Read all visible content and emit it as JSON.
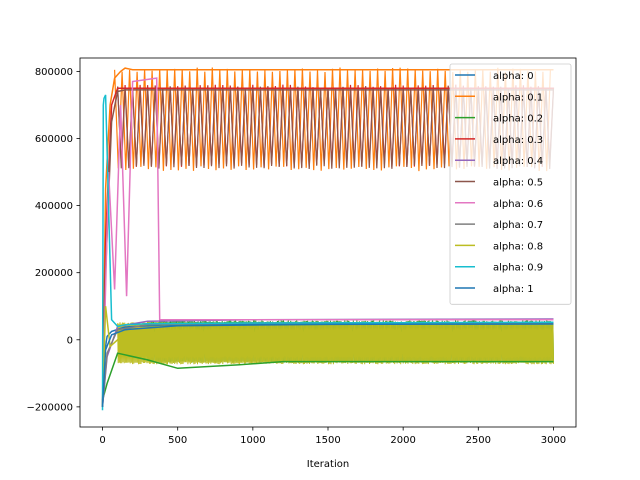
{
  "chart_data": {
    "type": "line",
    "title": "",
    "xlabel": "Iteration",
    "ylabel": "",
    "xlim": [
      -150,
      3150
    ],
    "ylim": [
      -260000,
      840000
    ],
    "x_ticks": [
      0,
      500,
      1000,
      1500,
      2000,
      2500,
      3000
    ],
    "x_tick_labels": [
      "0",
      "500",
      "1000",
      "1500",
      "2000",
      "2500",
      "3000"
    ],
    "y_ticks": [
      -200000,
      0,
      200000,
      400000,
      600000,
      800000
    ],
    "y_tick_labels": [
      "−200000",
      "0",
      "200000",
      "400000",
      "600000",
      "800000"
    ],
    "grid": false,
    "legend_position": "top-right",
    "series": [
      {
        "name": "alpha: 0",
        "color": "#1f77b4",
        "x": [
          0,
          10,
          30,
          60,
          150,
          400,
          1000,
          2000,
          3000
        ],
        "values": [
          -200000,
          -50000,
          10000,
          25000,
          38000,
          44000,
          47000,
          48000,
          48000
        ]
      },
      {
        "name": "alpha: 0.1",
        "color": "#ff7f0e",
        "x": [
          0,
          20,
          50,
          80,
          120,
          150,
          200,
          3000
        ],
        "values": [
          -200000,
          450000,
          700000,
          780000,
          800000,
          810000,
          805000,
          805000
        ],
        "band": [
          510000,
          805000
        ]
      },
      {
        "name": "alpha: 0.2",
        "color": "#2ca02c",
        "x": [
          0,
          30,
          100,
          300,
          500,
          900,
          1200,
          3000
        ],
        "values": [
          -180000,
          -130000,
          -40000,
          -60000,
          -85000,
          -75000,
          -65000,
          -65000
        ],
        "band": [
          -65000,
          55000
        ]
      },
      {
        "name": "alpha: 0.3",
        "color": "#d62728",
        "x": [
          0,
          20,
          60,
          100,
          150,
          3000
        ],
        "values": [
          -200000,
          300000,
          700000,
          750000,
          750000,
          750000
        ],
        "band": [
          520000,
          755000
        ]
      },
      {
        "name": "alpha: 0.4",
        "color": "#9467bd",
        "x": [
          0,
          30,
          100,
          300,
          1000,
          3000
        ],
        "values": [
          -200000,
          -50000,
          40000,
          55000,
          60000,
          62000
        ]
      },
      {
        "name": "alpha: 0.5",
        "color": "#8c564b",
        "x": [
          0,
          20,
          60,
          100,
          150,
          3000
        ],
        "values": [
          -200000,
          200000,
          650000,
          740000,
          745000,
          745000
        ],
        "band": [
          515000,
          750000
        ]
      },
      {
        "name": "alpha: 0.6",
        "color": "#e377c2",
        "x": [
          0,
          40,
          80,
          120,
          160,
          200,
          360,
          380,
          3000
        ],
        "values": [
          -200000,
          500000,
          150000,
          700000,
          130000,
          770000,
          780000,
          60000,
          60000
        ]
      },
      {
        "name": "alpha: 0.7",
        "color": "#7f7f7f",
        "x": [
          0,
          30,
          100,
          300,
          1000,
          3000
        ],
        "values": [
          -200000,
          -40000,
          30000,
          45000,
          50000,
          50000
        ]
      },
      {
        "name": "alpha: 0.8",
        "color": "#bcbd22",
        "x": [
          0,
          20,
          50,
          100,
          200,
          3000
        ],
        "values": [
          -200000,
          100000,
          -20000,
          0,
          0,
          0
        ],
        "band": [
          -70000,
          50000
        ]
      },
      {
        "name": "alpha: 0.9",
        "color": "#17becf",
        "x": [
          0,
          5,
          10,
          20,
          60,
          100,
          150,
          300,
          1000,
          3000
        ],
        "values": [
          -210000,
          700000,
          720000,
          730000,
          60000,
          40000,
          45000,
          48000,
          50000,
          52000
        ]
      },
      {
        "name": "alpha: 1",
        "color": "#1f77b4",
        "x": [
          0,
          20,
          60,
          150,
          500,
          1500,
          3000
        ],
        "values": [
          -200000,
          -30000,
          15000,
          30000,
          42000,
          46000,
          47000
        ]
      }
    ]
  }
}
